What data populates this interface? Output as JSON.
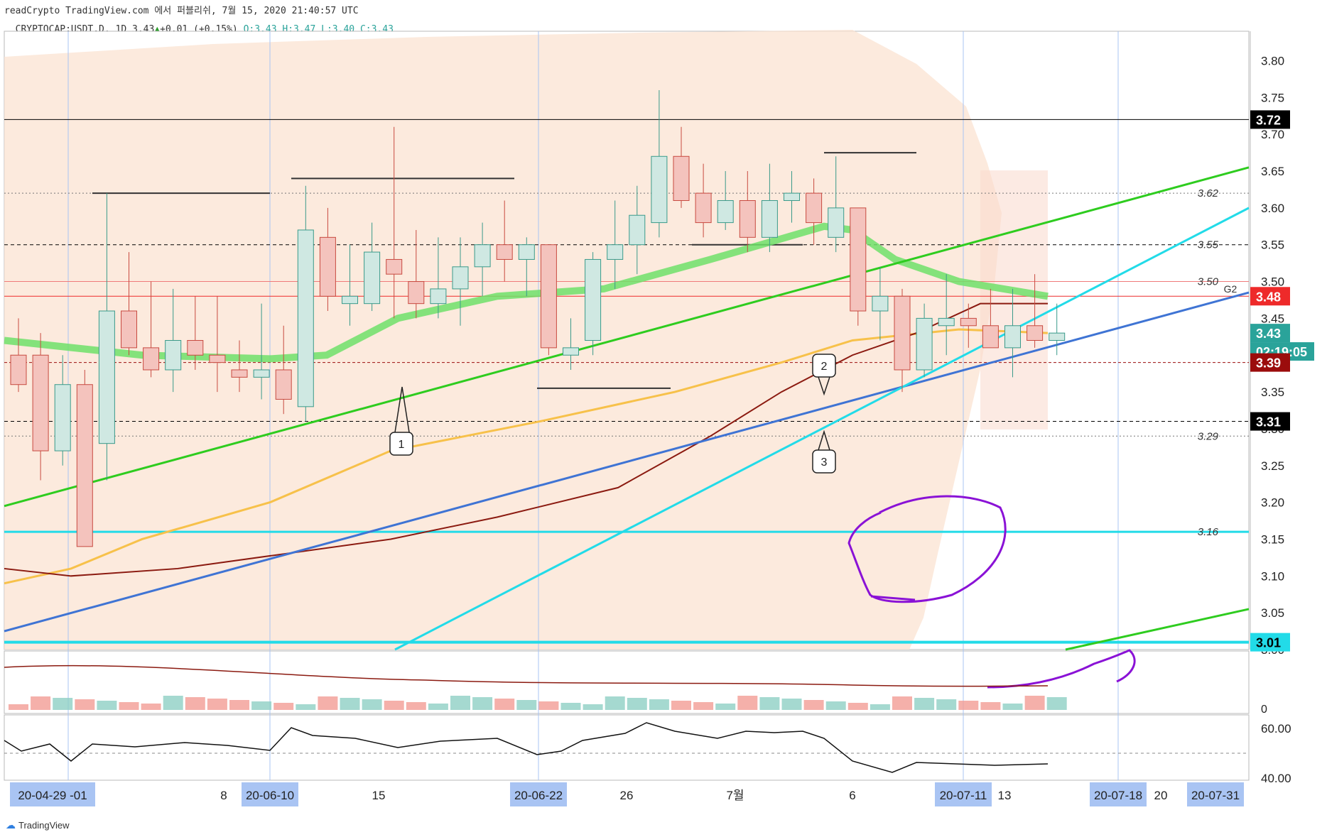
{
  "header": {
    "line1": "readCrypto TradingView.com 에서 퍼블리쉬, 7월 15, 2020 21:40:57 UTC",
    "symbol": "CRYPTOCAP:USDT.D, 1D",
    "last": "3.43",
    "change": "+0.01 (+0.15%)",
    "ohlc": "O:3.43 H:3.47 L:3.40 C:3.43"
  },
  "branding": "TradingView",
  "colors": {
    "up": "#cfe8e2",
    "down": "#f4c3bd",
    "green_line": "#2ecc1f",
    "cyan_line": "#22dbe8",
    "blue_line": "#3f74d4",
    "orange_ma": "#f7c14a",
    "darkred_ma": "#8b1a10",
    "cloud": "#fbe3d2",
    "purple": "#8a12d6"
  },
  "chart_data": {
    "type": "candlestick",
    "symbol": "CRYPTOCAP:USDT.D",
    "interval": "1D",
    "ylim": [
      3.0,
      3.84
    ],
    "y_ticks": [
      "3.80",
      "3.75",
      "3.70",
      "3.65",
      "3.60",
      "3.55",
      "3.50",
      "3.45",
      "3.40",
      "3.35",
      "3.30",
      "3.25",
      "3.20",
      "3.15",
      "3.10",
      "3.05",
      "3.00"
    ],
    "x_tick_labels": [
      {
        "label": "20-04-29 -01",
        "highlight": true
      },
      {
        "label": "8",
        "highlight": false
      },
      {
        "label": "20-06-10",
        "highlight": true
      },
      {
        "label": "15",
        "highlight": false
      },
      {
        "label": "20-06-22",
        "highlight": true
      },
      {
        "label": "26",
        "highlight": false
      },
      {
        "label": "7월",
        "highlight": false
      },
      {
        "label": "6",
        "highlight": false
      },
      {
        "label": "20-07-11",
        "highlight": true
      },
      {
        "label": "13",
        "highlight": false
      },
      {
        "label": "20-07-18",
        "highlight": true
      },
      {
        "label": "20",
        "highlight": false
      },
      {
        "label": "20-07-31",
        "highlight": true
      }
    ],
    "price_labels": [
      {
        "value": 3.72,
        "text": "3.72",
        "bg": "#000000",
        "fg": "#ffffff"
      },
      {
        "value": 3.48,
        "text": "3.48",
        "bg": "#ee2a2a",
        "fg": "#ffffff"
      },
      {
        "value": 3.43,
        "text": "3.43",
        "bg": "#2aa39a",
        "fg": "#ffffff"
      },
      {
        "value": 3.405,
        "text": "02:19:05",
        "bg": "#2aa39a",
        "fg": "#ffffff"
      },
      {
        "value": 3.39,
        "text": "3.39",
        "bg": "#9b0c0c",
        "fg": "#ffffff"
      },
      {
        "value": 3.31,
        "text": "3.31",
        "bg": "#000000",
        "fg": "#ffffff"
      },
      {
        "value": 3.01,
        "text": "3.01",
        "bg": "#22dbe8",
        "fg": "#000000"
      }
    ],
    "level_lines": [
      {
        "value": 3.62,
        "label": "3.62"
      },
      {
        "value": 3.55,
        "label": "3.55"
      },
      {
        "value": 3.5,
        "label": "3.50"
      },
      {
        "value": 3.29,
        "label": "3.29"
      },
      {
        "value": 3.16,
        "label": "3.16"
      }
    ],
    "g2_label": "G2",
    "annotations": [
      "1",
      "2",
      "3"
    ],
    "candles": [
      {
        "o": 3.4,
        "h": 3.45,
        "l": 3.35,
        "c": 3.36
      },
      {
        "o": 3.4,
        "h": 3.43,
        "l": 3.23,
        "c": 3.27
      },
      {
        "o": 3.27,
        "h": 3.4,
        "l": 3.25,
        "c": 3.36
      },
      {
        "o": 3.36,
        "h": 3.38,
        "l": 3.14,
        "c": 3.14
      },
      {
        "o": 3.28,
        "h": 3.62,
        "l": 3.23,
        "c": 3.46
      },
      {
        "o": 3.46,
        "h": 3.54,
        "l": 3.4,
        "c": 3.41
      },
      {
        "o": 3.41,
        "h": 3.5,
        "l": 3.37,
        "c": 3.38
      },
      {
        "o": 3.38,
        "h": 3.49,
        "l": 3.35,
        "c": 3.42
      },
      {
        "o": 3.42,
        "h": 3.48,
        "l": 3.38,
        "c": 3.4
      },
      {
        "o": 3.4,
        "h": 3.48,
        "l": 3.35,
        "c": 3.39
      },
      {
        "o": 3.38,
        "h": 3.42,
        "l": 3.35,
        "c": 3.37
      },
      {
        "o": 3.37,
        "h": 3.47,
        "l": 3.34,
        "c": 3.38
      },
      {
        "o": 3.38,
        "h": 3.44,
        "l": 3.32,
        "c": 3.34
      },
      {
        "o": 3.33,
        "h": 3.63,
        "l": 3.31,
        "c": 3.57
      },
      {
        "o": 3.56,
        "h": 3.6,
        "l": 3.46,
        "c": 3.48
      },
      {
        "o": 3.47,
        "h": 3.55,
        "l": 3.44,
        "c": 3.48
      },
      {
        "o": 3.47,
        "h": 3.58,
        "l": 3.46,
        "c": 3.54
      },
      {
        "o": 3.53,
        "h": 3.71,
        "l": 3.45,
        "c": 3.51
      },
      {
        "o": 3.5,
        "h": 3.57,
        "l": 3.45,
        "c": 3.47
      },
      {
        "o": 3.47,
        "h": 3.56,
        "l": 3.45,
        "c": 3.49
      },
      {
        "o": 3.49,
        "h": 3.56,
        "l": 3.44,
        "c": 3.52
      },
      {
        "o": 3.52,
        "h": 3.58,
        "l": 3.48,
        "c": 3.55
      },
      {
        "o": 3.55,
        "h": 3.61,
        "l": 3.5,
        "c": 3.53
      },
      {
        "o": 3.53,
        "h": 3.56,
        "l": 3.48,
        "c": 3.55
      },
      {
        "o": 3.55,
        "h": 3.55,
        "l": 3.4,
        "c": 3.41
      },
      {
        "o": 3.4,
        "h": 3.45,
        "l": 3.38,
        "c": 3.41
      },
      {
        "o": 3.42,
        "h": 3.54,
        "l": 3.4,
        "c": 3.53
      },
      {
        "o": 3.53,
        "h": 3.61,
        "l": 3.49,
        "c": 3.55
      },
      {
        "o": 3.55,
        "h": 3.63,
        "l": 3.51,
        "c": 3.59
      },
      {
        "o": 3.58,
        "h": 3.76,
        "l": 3.56,
        "c": 3.67
      },
      {
        "o": 3.67,
        "h": 3.71,
        "l": 3.6,
        "c": 3.61
      },
      {
        "o": 3.62,
        "h": 3.66,
        "l": 3.56,
        "c": 3.58
      },
      {
        "o": 3.58,
        "h": 3.65,
        "l": 3.57,
        "c": 3.61
      },
      {
        "o": 3.61,
        "h": 3.65,
        "l": 3.54,
        "c": 3.56
      },
      {
        "o": 3.56,
        "h": 3.66,
        "l": 3.54,
        "c": 3.61
      },
      {
        "o": 3.61,
        "h": 3.65,
        "l": 3.58,
        "c": 3.62
      },
      {
        "o": 3.62,
        "h": 3.64,
        "l": 3.55,
        "c": 3.58
      },
      {
        "o": 3.56,
        "h": 3.67,
        "l": 3.54,
        "c": 3.6
      },
      {
        "o": 3.6,
        "h": 3.6,
        "l": 3.44,
        "c": 3.46
      },
      {
        "o": 3.46,
        "h": 3.52,
        "l": 3.42,
        "c": 3.48
      },
      {
        "o": 3.48,
        "h": 3.49,
        "l": 3.35,
        "c": 3.38
      },
      {
        "o": 3.38,
        "h": 3.47,
        "l": 3.37,
        "c": 3.45
      },
      {
        "o": 3.44,
        "h": 3.51,
        "l": 3.4,
        "c": 3.45
      },
      {
        "o": 3.45,
        "h": 3.47,
        "l": 3.41,
        "c": 3.44
      },
      {
        "o": 3.44,
        "h": 3.49,
        "l": 3.41,
        "c": 3.41
      },
      {
        "o": 3.41,
        "h": 3.49,
        "l": 3.37,
        "c": 3.44
      },
      {
        "o": 3.44,
        "h": 3.51,
        "l": 3.41,
        "c": 3.42
      },
      {
        "o": 3.42,
        "h": 3.47,
        "l": 3.4,
        "c": 3.43
      }
    ],
    "rsi_ticks": [
      "60.00",
      "40.00"
    ],
    "volume_zero_label": "0"
  }
}
